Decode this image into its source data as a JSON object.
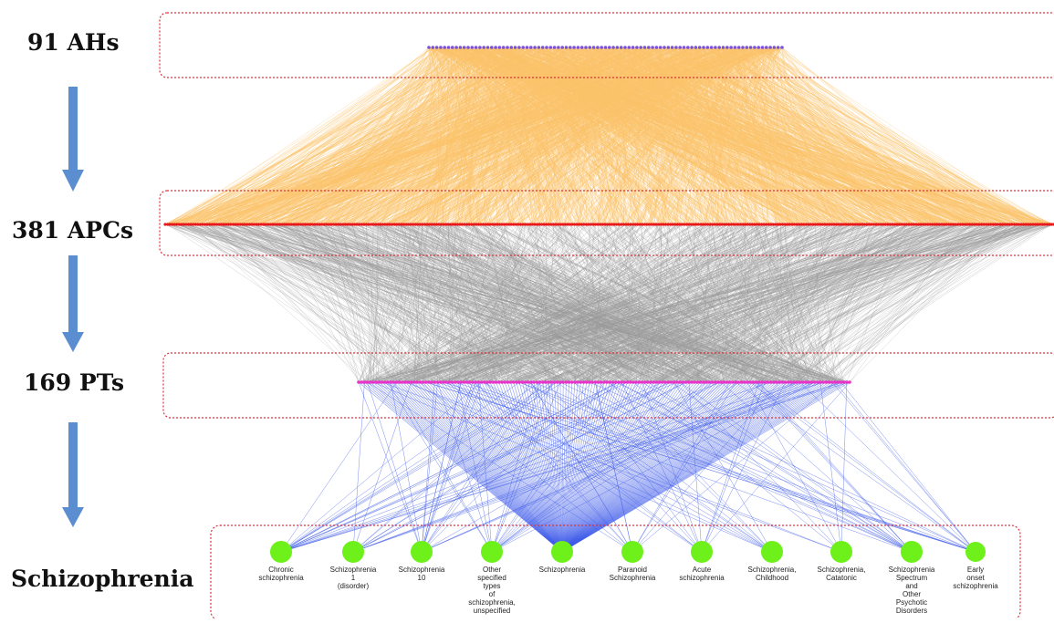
{
  "levels": [
    {
      "label": "91 AHs",
      "count": 91,
      "node_color": "#7b52d6"
    },
    {
      "label": "381 APCs",
      "count": 381,
      "node_color": "#e8191b"
    },
    {
      "label": "169 PTs",
      "count": 169,
      "node_color": "#e832c8"
    },
    {
      "label": "Schizophrenia",
      "count": 11,
      "node_color": "#6ef01a"
    }
  ],
  "edge_colors": {
    "ah_to_apc": "#fbc36a",
    "apc_to_pt": "#9a9a9a",
    "pt_to_disease": "#3f5bea"
  },
  "arrow_color": "#5b8ed1",
  "box_color": "#e0303a",
  "diseases": [
    {
      "lines": [
        "Chronic",
        "schizophrenia"
      ]
    },
    {
      "lines": [
        "Schizophrenia",
        "1",
        "(disorder)"
      ]
    },
    {
      "lines": [
        "Schizophrenia",
        "10"
      ]
    },
    {
      "lines": [
        "Other",
        "specified",
        "types",
        "of",
        "schizophrenia,",
        "unspecified"
      ]
    },
    {
      "lines": [
        "Schizophrenia"
      ]
    },
    {
      "lines": [
        "Paranoid",
        "Schizophrenia"
      ]
    },
    {
      "lines": [
        "Acute",
        "schizophrenia"
      ]
    },
    {
      "lines": [
        "Schizophrenia,",
        "Childhood"
      ]
    },
    {
      "lines": [
        "Schizophrenia,",
        "Catatonic"
      ]
    },
    {
      "lines": [
        "Schizophrenia",
        "Spectrum",
        "and",
        "Other",
        "Psychotic",
        "Disorders"
      ]
    },
    {
      "lines": [
        "Early",
        "onset",
        "schizophrenia"
      ]
    }
  ]
}
